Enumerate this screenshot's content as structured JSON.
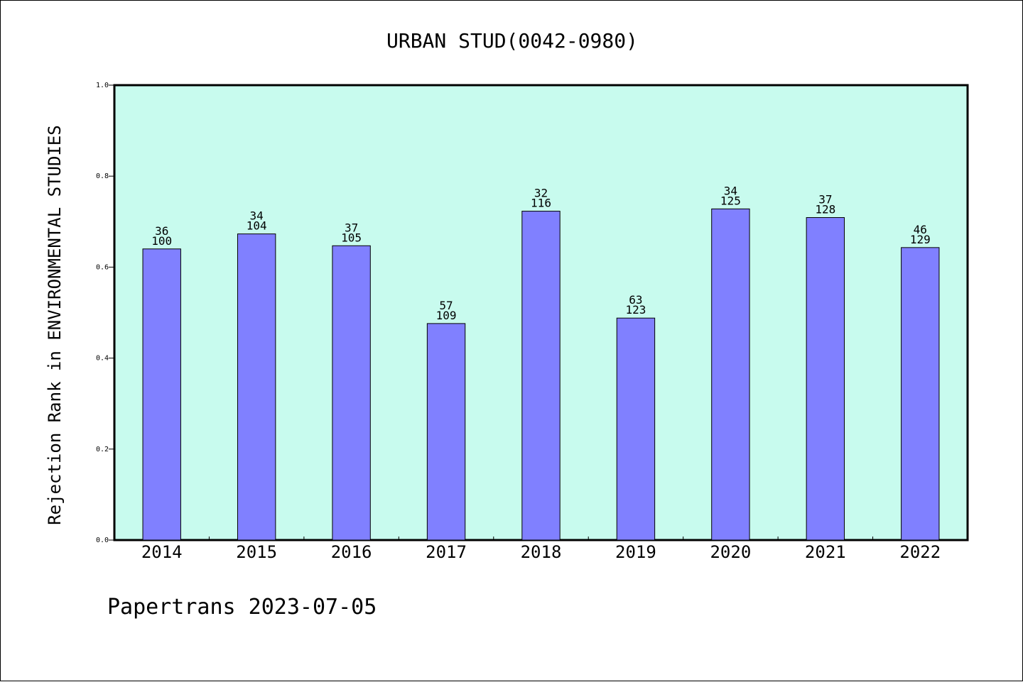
{
  "chart_data": {
    "type": "bar",
    "title": "URBAN STUD(0042-0980)",
    "xlabel": "",
    "ylabel": "Rejection Rank in ENVIRONMENTAL STUDIES",
    "ylim": [
      0,
      1.0
    ],
    "yticks": [
      "0.0",
      "0.2",
      "0.4",
      "0.6",
      "0.8",
      "1.0"
    ],
    "ytick_values": [
      0,
      0.2,
      0.4,
      0.6,
      0.8,
      1.0
    ],
    "categories": [
      "2014",
      "2015",
      "2016",
      "2017",
      "2018",
      "2019",
      "2020",
      "2021",
      "2022"
    ],
    "values": [
      0.64,
      0.673,
      0.647,
      0.476,
      0.723,
      0.488,
      0.728,
      0.709,
      0.643
    ],
    "bar_labels_top": [
      "36",
      "34",
      "37",
      "57",
      "32",
      "63",
      "34",
      "37",
      "46"
    ],
    "bar_labels_bottom": [
      "100",
      "104",
      "105",
      "109",
      "116",
      "123",
      "125",
      "128",
      "129"
    ],
    "grid": false,
    "colors": {
      "bar": "#8080ff",
      "plot_background": "#c8fbee",
      "bar_edge": "#000000"
    }
  },
  "footer": {
    "text": "Papertrans 2023-07-05"
  }
}
